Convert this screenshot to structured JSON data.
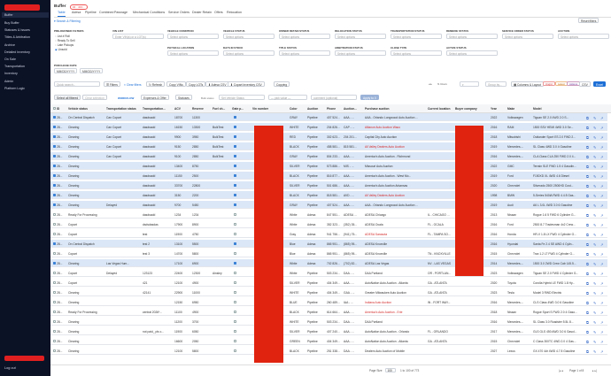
{
  "app": {
    "title": "Buffer",
    "subtitle": "#4 · 433..."
  },
  "sidebar": {
    "items": [
      "Buy Buffer",
      "Statuses & Issues",
      "Titles & Arbitration",
      "Archive",
      "Detailed Inventory",
      "On Sale",
      "Transportation",
      "Inventory",
      "Admin",
      "Platform Logic"
    ],
    "active_index": 0,
    "logout": "Log out"
  },
  "tabs": [
    "Table",
    "Adesa",
    "Pipeline",
    "Combined",
    "Pawnage",
    "Mechanical Conditions",
    "Service Orders",
    "Dealer Retain",
    "Offers",
    "Relocation"
  ],
  "selected_tab": 0,
  "reset_filters": "Reset filters",
  "search_filtering": "Search & Filtering",
  "filters": {
    "predefined_label": "PRE-DEFINED FILTERS",
    "predefined_options": [
      "List # Roll",
      "Ready To Sell",
      "Late Pickups",
      "Unsold"
    ],
    "vin_label": "VIN LIST",
    "vin_placeholder": "Enter VIN(s) or a LOT(s)",
    "fields": [
      {
        "label": "VEHICLE CONDITION",
        "placeholder": "Select options"
      },
      {
        "label": "VEHICLE STATUS",
        "placeholder": "Select options"
      },
      {
        "label": "OWNER RETAIN STATUS",
        "placeholder": "Select options"
      },
      {
        "label": "RELOCATION STATUS",
        "placeholder": "Select options"
      },
      {
        "label": "TRANSPORTATION STATUS",
        "placeholder": "Select options"
      },
      {
        "label": "REMEDIE STATUS",
        "placeholder": "Select options"
      },
      {
        "label": "SERVICE ORDER STATUS",
        "placeholder": "Select options"
      },
      {
        "label": "AUCTION",
        "placeholder": "Select options"
      }
    ],
    "fields2": [
      {
        "label": "PHYSICAL LOCATION",
        "placeholder": "Select options"
      },
      {
        "label": "DAYS IN STOCK",
        "placeholder": "Select options"
      },
      {
        "label": "TITLE STATUS",
        "placeholder": "Select options"
      },
      {
        "label": "ARBITRATION STATUS",
        "placeholder": "Select options"
      },
      {
        "label": "CLOSE TYPE",
        "placeholder": "Select options"
      },
      {
        "label": "ACTIVE STATUS",
        "placeholder": "Select options"
      }
    ],
    "purchase_date_label": "PURCHASE DATE",
    "date_from": "MM/DD/YYYY",
    "date_to": "MM/DD/YYYY"
  },
  "toolbar": {
    "search_placeholder": "Quick search...",
    "filters": "Filters",
    "clear_filters": "× Clear filters",
    "refresh": "Refresh",
    "copy_vins": "Copy VINs",
    "copy_lots": "Copy LOTs",
    "adesa_csv": "Adesa CSV",
    "copart_csv": "Copart Inventory CSV",
    "copart_short": "Copart",
    "copying": "Copying",
    "row_group_placeholder": "Group by...",
    "columns_layout": "Columns & Layout",
    "chip1": "Ungrd",
    "chip2": "Latest",
    "chip3": "Actions",
    "csv": "CSV",
    "excel": "Excel"
  },
  "toolbar2": {
    "select_all": "Select all filtered",
    "clear_selection": "Clear selection",
    "workflow": "WORKFLOW",
    "expenses": "Expenses & Offer",
    "statuses": "Statuses",
    "bulk_status": "Bulk status",
    "set_vehicle_status": "Set Vehicle Status",
    "pick_value": "— pick value —",
    "comment": "comment (optional)",
    "apply": "Apply to 0"
  },
  "columns": [
    "ID",
    "Vehicle status",
    "Transportation status",
    "Transportation...",
    "ACV",
    "Reserve",
    "Fuel ch...",
    "Gate p...",
    "Vin number",
    "Color",
    "Auction",
    "Phone",
    "Auction...",
    "Purchase auction",
    "Current location",
    "Buyer company",
    "Year",
    "Make",
    "Model"
  ],
  "rows": [
    {
      "id": "28...",
      "vs": "On Central Dispatch",
      "ts": "Can Copart",
      "tr": "dasdsadd",
      "acv": "18700",
      "res": "11300",
      "fuel": "",
      "g": true,
      "color": "GRAY",
      "auc": "Pipeline",
      "ph": "407 524...",
      "aid": "AAA - ...",
      "pa": "AAA - Orlando Longwood Auto Auction ...",
      "loc": "",
      "year": "2022",
      "make": "Volkswagen",
      "model": "Tiguan SE 2.0 4WD 2.0 S...",
      "sel": true
    },
    {
      "id": "28...",
      "vs": "Clearing",
      "ts": "Can Copart",
      "tr": "dasdsadd",
      "acv": "16150",
      "res": "13300",
      "fuel": "BulkTest",
      "g": true,
      "color": "WHITE",
      "auc": "Pipeline",
      "ph": "204 826...",
      "aid": "CAP - ...",
      "pa": "Alliance Auto Auction Waco",
      "loc": "",
      "year": "2016",
      "make": "RAM",
      "model": "1500 SSV HEMI 4WD 3.0 Se...",
      "sel": true,
      "red": true
    },
    {
      "id": "28...",
      "vs": "Clearing",
      "ts": "Can Copart",
      "tr": "dasdsadd",
      "acv": "9900",
      "res": "3950",
      "fuel": "BulkTest",
      "g": true,
      "color": "RED",
      "auc": "Pipeline",
      "ph": "302 623...",
      "aid": "204 201...",
      "pa": "Capital City Auto Auction",
      "loc": "",
      "year": "2018",
      "make": "Mitsubishi",
      "model": "Outlander Sport ES 2.0 FWD 2...",
      "sel": true
    },
    {
      "id": "28...",
      "vs": "Clearing",
      "ts": "Can Copart",
      "tr": "dasdsadd",
      "acv": "9150",
      "res": "2850",
      "fuel": "BulkTest",
      "g": true,
      "color": "BLACK",
      "auc": "Pipeline",
      "ph": "458 581...",
      "aid": "815 581...",
      "pa": "All Valley Dealers Auto Auction",
      "loc": "",
      "year": "2019",
      "make": "Mercedes-...",
      "model": "SL Class 4WD 3.0 4 Gasoline",
      "sel": true,
      "red": true
    },
    {
      "id": "28...",
      "vs": "Clearing",
      "ts": "Can Copart",
      "tr": "dasdsadd",
      "acv": "9100",
      "res": "2850",
      "fuel": "BulkTest",
      "g": true,
      "color": "GRAY",
      "auc": "Pipeline",
      "ph": "804 233...",
      "aid": "AAA - ...",
      "pa": "America's Auto Auction - Richmond",
      "loc": "",
      "year": "2016",
      "make": "Mercedes-...",
      "model": "CLA Class CLA 250 FWD 2.0 4...",
      "sel": true
    },
    {
      "id": "28...",
      "vs": "Clearing",
      "ts": "",
      "tr": "dasdsadd",
      "acv": "13400",
      "res": "8750",
      "fuel": "",
      "g": true,
      "color": "SILVER",
      "auc": "Pipeline",
      "ph": "573 886...",
      "aid": "MIS - ...",
      "pa": "Missouri Auto Auction",
      "loc": "",
      "year": "2022",
      "make": "GMC",
      "model": "Terrain SLE FWD 1.5 4 Gasolin...",
      "sel": true
    },
    {
      "id": "28...",
      "vs": "Clearing",
      "ts": "",
      "tr": "dasdsadd",
      "acv": "11150",
      "res": "2500",
      "fuel": "",
      "g": true,
      "color": "BLACK",
      "auc": "Pipeline",
      "ph": "816 877...",
      "aid": "AAA - ...",
      "pa": "America's Auto Auction - West Mo...",
      "loc": "",
      "year": "2019",
      "make": "Ford",
      "model": "F150XD XL 4WD 4.6 Diesel",
      "sel": true
    },
    {
      "id": "28...",
      "vs": "Clearing",
      "ts": "",
      "tr": "dasdsadd",
      "acv": "33700",
      "res": "22800",
      "fuel": "",
      "g": true,
      "color": "SILVER",
      "auc": "Pipeline",
      "ph": "501 686...",
      "aid": "AAA - ...",
      "pa": "America's Auto Auction Arkansas",
      "loc": "",
      "year": "2020",
      "make": "Chevrolet",
      "model": "Silverado 2500 2500HD Cust...",
      "sel": true
    },
    {
      "id": "28...",
      "vs": "Clearing",
      "ts": "",
      "tr": "dasdsadd",
      "acv": "3150",
      "res": "2200",
      "fuel": "",
      "g": true,
      "color": "BLACK",
      "auc": "Pipeline",
      "ph": "818 581...",
      "aid": "AVD - ...",
      "pa": "All Valley Dealers Auto Auction",
      "loc": "",
      "year": "1998",
      "make": "BMW",
      "model": "5-Series 540iA RWD 4.4 8 Gas...",
      "sel": true,
      "red": true
    },
    {
      "id": "28...",
      "vs": "Clearing",
      "ts": "Delayed",
      "tr": "dasdsadd",
      "acv": "9700",
      "res": "5450",
      "fuel": "",
      "g": true,
      "color": "GRAY",
      "auc": "Pipeline",
      "ph": "407 524...",
      "aid": "AAA - ...",
      "pa": "AAA - Orlando Longwood Auto Auction ...",
      "loc": "",
      "year": "2019",
      "make": "Audi",
      "model": "A6 L 3.0L 4WD 3.0 6 Gasoline",
      "sel": true
    },
    {
      "id": "28...",
      "vs": "Ready For Processing",
      "ts": "",
      "tr": "dasdsadd",
      "acv": "1234",
      "res": "1234",
      "fuel": "",
      "g": false,
      "color": "White",
      "auc": "Adesa",
      "ph": "847 551...",
      "aid": "ADESA ...",
      "pa": "ADESA Chicago",
      "loc": "IL - CHICAGO ...",
      "year": "2013",
      "make": "Nissan",
      "model": "Rogue 1.6 5 FWD 6 Cylinder G..."
    },
    {
      "id": "28...",
      "vs": "Copart",
      "ts": "",
      "tr": "dsdsdasdas",
      "acv": "17900",
      "res": "8900",
      "fuel": "",
      "g": false,
      "color": "White",
      "auc": "Adesa",
      "ph": "352 323...",
      "aid": "(352) 35...",
      "pa": "ADESA Ocala",
      "loc": "FL - OCALA",
      "year": "2016",
      "make": "Ford",
      "model": "2500 8.7 Tradesman 4x2 Crew..."
    },
    {
      "id": "28...",
      "vs": "Copart",
      "ts": "",
      "tr": "test",
      "acv": "11900",
      "res": "4750",
      "fuel": "",
      "g": false,
      "color": "Gray",
      "auc": "Adesa",
      "ph": "941 756...",
      "aid": "(941) 75...",
      "pa": "ADESA Sarasota",
      "loc": "FL - TAMPA SO...",
      "year": "2016",
      "make": "Honda",
      "model": "HR-V 1.8 LX FWD 4 Cylinder G...",
      "red": true
    },
    {
      "id": "28...",
      "vs": "On Central Dispatch",
      "ts": "",
      "tr": "test 2",
      "acv": "13100",
      "res": "5500",
      "fuel": "",
      "g": true,
      "color": "Blue",
      "auc": "Adesa",
      "ph": "865 951...",
      "aid": "(865) 95...",
      "pa": "ADESA Knoxville",
      "loc": "",
      "year": "2016",
      "make": "Hyundai",
      "model": "Santa Fe 2.4 SE AWD 4 Cylin...",
      "sel": true
    },
    {
      "id": "28...",
      "vs": "Copart",
      "ts": "",
      "tr": "test 3",
      "acv": "14700",
      "res": "5800",
      "fuel": "",
      "g": false,
      "color": "Blue",
      "auc": "Adesa",
      "ph": "865 951...",
      "aid": "(865) 95...",
      "pa": "ADESA Knoxville",
      "loc": "TN - KNOXVILLE",
      "year": "2015",
      "make": "Chevrolet",
      "model": "Trax 1.2 LT FWD 4 Cylinder G..."
    },
    {
      "id": "28...",
      "vs": "Clearing",
      "ts": "Las Vegas Hum...",
      "tr": "",
      "acv": "17100",
      "res": "6900",
      "fuel": "",
      "g": true,
      "color": "White",
      "auc": "Adesa",
      "ph": "702 826...",
      "aid": "(702) 82...",
      "pa": "ADESA Las Vegas",
      "loc": "NV - LAS VEGAS",
      "year": "2014",
      "make": "Mercedes-...",
      "model": "1500 3.0 2WD Crew Cab 145.5...",
      "sel": true
    },
    {
      "id": "28...",
      "vs": "Copart",
      "ts": "Delayed",
      "tr": "123123",
      "acv": "22400",
      "res": "12300",
      "fuel": "Ainsley",
      "g": false,
      "color": "White",
      "auc": "Pipeline",
      "ph": "503 234...",
      "aid": "DAA - ...",
      "pa": "DAA Portland",
      "loc": "OR - PORTLAN...",
      "year": "2023",
      "make": "Volkswagen",
      "model": "Tiguan SE 2.0 FWD 4 Cylinder G..."
    },
    {
      "id": "28...",
      "vs": "Copart",
      "ts": "",
      "tr": "421",
      "acv": "12100",
      "res": "4900",
      "fuel": "",
      "g": false,
      "color": "SILVER",
      "auc": "Pipeline",
      "ph": "404 349...",
      "aid": "AAA - ...",
      "pa": "AutoNation Auto Auction - Atlanta",
      "loc": "GA - ATLANTA",
      "year": "2020",
      "make": "Toyota",
      "model": "Corolla Hybrid LE FWD 1.8 Hy..."
    },
    {
      "id": "28...",
      "vs": "Clearing",
      "ts": "",
      "tr": "42141",
      "acv": "22900",
      "res": "11000",
      "fuel": "",
      "g": false,
      "color": "WHITE",
      "auc": "Pipeline",
      "ph": "404 349...",
      "aid": "GAA - ...",
      "pa": "Greater Milwaukee Auto Auction",
      "loc": "GA - ATLANTA",
      "year": "2023",
      "make": "Tesla",
      "model": "Model 3 RWD Electric"
    },
    {
      "id": "28...",
      "vs": "Clearing",
      "ts": "",
      "tr": "",
      "acv": "12150",
      "res": "6950",
      "fuel": "",
      "g": false,
      "color": "BLUE",
      "auc": "Pipeline",
      "ph": "260 489...",
      "aid": "IAA - ...",
      "pa": "Indiana Auto Auction",
      "loc": "IN - FORT WAY...",
      "year": "2016",
      "make": "Mercedes-...",
      "model": "CLS Class 4WD 3.0 6 Gasoline",
      "red": true
    },
    {
      "id": "28...",
      "vs": "Ready For Processing",
      "ts": "",
      "tr": "central 2026*...",
      "acv": "11100",
      "res": "4900",
      "fuel": "",
      "g": false,
      "color": "BLACK",
      "auc": "Pipeline",
      "ph": "614 664...",
      "aid": "AAA - ...",
      "pa": "America's Auto Auction - Erie",
      "loc": "",
      "year": "2018",
      "make": "Nissan",
      "model": "Rogue Sport S FWD 2.0 4 Gaso...",
      "red": true
    },
    {
      "id": "28...",
      "vs": "Clearing",
      "ts": "",
      "tr": "",
      "acv": "11200",
      "res": "3700",
      "fuel": "",
      "g": false,
      "color": "WHITE",
      "auc": "Pipeline",
      "ph": "503 234...",
      "aid": "DAA - ...",
      "pa": "DAA Portland",
      "loc": "",
      "year": "2016",
      "make": "Mercedes-...",
      "model": "SL Class 3.0 Roadster 5.5L 8..."
    },
    {
      "id": "28...",
      "vs": "Clearing",
      "ts": "",
      "tr": "not paid_ pls c...",
      "acv": "11900",
      "res": "6050",
      "fuel": "",
      "g": false,
      "color": "SILVER",
      "auc": "Pipeline",
      "ph": "407 240...",
      "aid": "AAA - ...",
      "pa": "AutoNation Auto Auction - Orlando",
      "loc": "FL - ORLANDO",
      "year": "2017",
      "make": "Mercedes-...",
      "model": "GLS GLS 450 AWD 3.0 6 Gasol..."
    },
    {
      "id": "28...",
      "vs": "Clearing",
      "ts": "",
      "tr": "",
      "acv": "16600",
      "res": "2050",
      "fuel": "",
      "g": false,
      "color": "GREEN",
      "auc": "Pipeline",
      "ph": "404 349...",
      "aid": "AAA - ...",
      "pa": "AutoNation Auto Auction - Atlanta",
      "loc": "GA - ATLANTA",
      "year": "2015",
      "make": "Chevrolet",
      "model": "C Class 300TC 4WD 2.0 4 Gas..."
    },
    {
      "id": "28...",
      "vs": "Clearing",
      "ts": "",
      "tr": "",
      "acv": "12100",
      "res": "5800",
      "fuel": "",
      "g": false,
      "color": "BLACK",
      "auc": "Pipeline",
      "ph": "251 338...",
      "aid": "DAA - ...",
      "pa": "Dealers Auto Auction of Mobile",
      "loc": "",
      "year": "2027",
      "make": "Lexus",
      "model": "GX 470 4dr 4WD 4.7 8 Gasoline"
    }
  ],
  "footer": {
    "page_size_label": "Page Size",
    "page_size": "100",
    "range": "1 to 100 of 773",
    "page_text": "Page 1 of 8"
  },
  "colors": {
    "sidebar_bg": "#0c1226",
    "accent": "#1d6fd6",
    "selected_row": "#dbe7f7",
    "redaction": "#e0230f",
    "link_red": "#d42a2a"
  }
}
